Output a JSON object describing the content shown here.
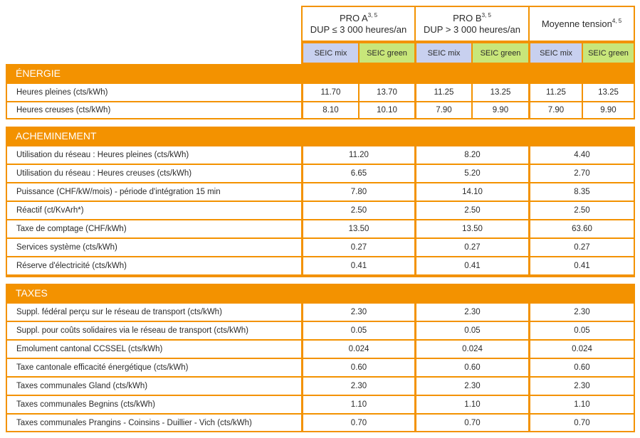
{
  "header": {
    "pro_a": {
      "line1": "PRO A",
      "sup": "3, 5",
      "line2": "DUP ≤ 3 000 heures/an"
    },
    "pro_b": {
      "line1": "PRO B",
      "sup": "3, 5",
      "line2": "DUP > 3 000 heures/an"
    },
    "mt": {
      "line1": "Moyenne tension",
      "sup": "4, 5"
    },
    "sub": {
      "mix": "SEIC mix",
      "green": "SEIC green"
    }
  },
  "sections": {
    "energie": {
      "title": "ÉNERGIE",
      "rows": [
        {
          "label": "Heures pleines (cts/kWh)",
          "values": [
            "11.70",
            "13.70",
            "11.25",
            "13.25",
            "11.25",
            "13.25"
          ]
        },
        {
          "label": "Heures creuses (cts/kWh)",
          "values": [
            "8.10",
            "10.10",
            "7.90",
            "9.90",
            "7.90",
            "9.90"
          ]
        }
      ]
    },
    "acheminement": {
      "title": "ACHEMINEMENT",
      "rows": [
        {
          "label": "Utilisation du réseau : Heures pleines (cts/kWh)",
          "values": [
            "11.20",
            "8.20",
            "4.40"
          ]
        },
        {
          "label": "Utilisation du réseau : Heures creuses (cts/kWh)",
          "values": [
            "6.65",
            "5.20",
            "2.70"
          ]
        },
        {
          "label": "Puissance (CHF/kW/mois) - période d'intégration 15 min",
          "values": [
            "7.80",
            "14.10",
            "8.35"
          ]
        },
        {
          "label": "Réactif (ct/KvArh*)",
          "values": [
            "2.50",
            "2.50",
            "2.50"
          ]
        },
        {
          "label": "Taxe de comptage (CHF/kWh)",
          "values": [
            "13.50",
            "13.50",
            "63.60"
          ]
        },
        {
          "label": "Services système (cts/kWh)",
          "values": [
            "0.27",
            "0.27",
            "0.27"
          ]
        },
        {
          "label": "Réserve d'électricité (cts/kWh)",
          "values": [
            "0.41",
            "0.41",
            "0.41"
          ]
        }
      ]
    },
    "taxes": {
      "title": "TAXES",
      "rows": [
        {
          "label": "Suppl. fédéral perçu sur le réseau de transport (cts/kWh)",
          "values": [
            "2.30",
            "2.30",
            "2.30"
          ]
        },
        {
          "label": "Suppl. pour coûts solidaires via le réseau de transport (cts/kWh)",
          "values": [
            "0.05",
            "0.05",
            "0.05"
          ]
        },
        {
          "label": "Emolument cantonal CCSSEL (cts/kWh)",
          "values": [
            "0.024",
            "0.024",
            "0.024"
          ]
        },
        {
          "label": "Taxe cantonale efficacité énergétique (cts/kWh)",
          "values": [
            "0.60",
            "0.60",
            "0.60"
          ]
        },
        {
          "label": "Taxes communales Gland (cts/kWh)",
          "values": [
            "2.30",
            "2.30",
            "2.30"
          ]
        },
        {
          "label": "Taxes communales Begnins (cts/kWh)",
          "values": [
            "1.10",
            "1.10",
            "1.10"
          ]
        },
        {
          "label": "Taxes communales Prangins - Coinsins - Duillier - Vich (cts/kWh)",
          "values": [
            "0.70",
            "0.70",
            "0.70"
          ]
        }
      ]
    }
  }
}
